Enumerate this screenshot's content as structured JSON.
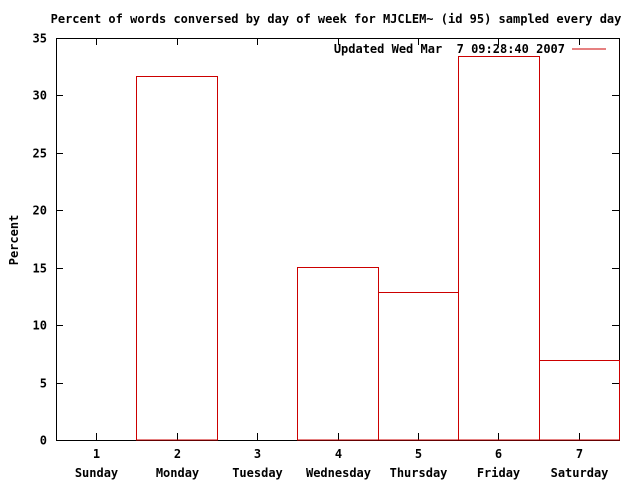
{
  "chart_data": {
    "type": "bar",
    "title": "Percent of words conversed by day of week for MJCLEM~ (id 95) sampled every day",
    "xlabel": "",
    "ylabel": "Percent",
    "x": [
      1,
      2,
      3,
      4,
      5,
      6,
      7
    ],
    "categories": [
      "Sunday",
      "Monday",
      "Tuesday",
      "Wednesday",
      "Thursday",
      "Friday",
      "Saturday"
    ],
    "values": [
      0,
      31.7,
      0,
      15.1,
      12.9,
      33.4,
      7.0
    ],
    "xlim": [
      0.5,
      7.5
    ],
    "ylim": [
      0,
      35
    ],
    "yticks": [
      0,
      5,
      10,
      15,
      20,
      25,
      30,
      35
    ],
    "grid": false,
    "legend_position": "top-right",
    "series": [
      {
        "name": "Updated Wed Mar  7 09:28:40 2007",
        "values": [
          0,
          31.7,
          0,
          15.1,
          12.9,
          33.4,
          7.0
        ]
      }
    ],
    "colors": {
      "series": "#cc0000",
      "axis": "#000000",
      "background": "#ffffff"
    }
  }
}
